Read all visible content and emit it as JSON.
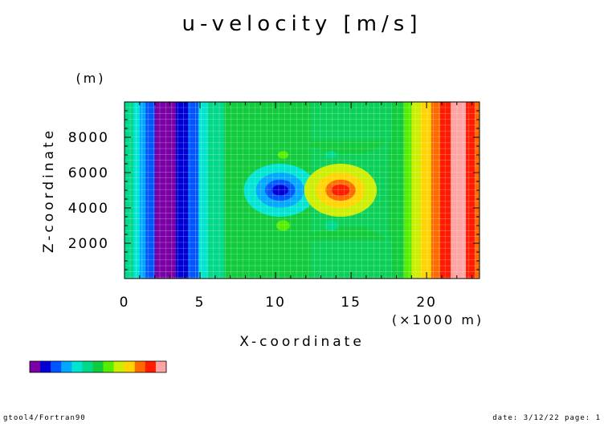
{
  "chart_data": {
    "type": "heatmap",
    "title": "u-velocity [m/s]",
    "xlabel": "X-coordinate",
    "xunit": "(×1000 m)",
    "ylabel": "Z-coordinate",
    "yunit": "(m)",
    "xlim": [
      0,
      23.5
    ],
    "ylim": [
      0,
      10000
    ],
    "x_ticks": [
      0,
      5,
      10,
      15,
      20
    ],
    "y_ticks": [
      2000,
      4000,
      6000,
      8000
    ],
    "colorbar": {
      "colors": [
        "#7a00a6",
        "#0000d6",
        "#0055ff",
        "#00a8ff",
        "#00e5d2",
        "#00d88a",
        "#10cc3c",
        "#55ee00",
        "#ccee00",
        "#ffd400",
        "#ff6a00",
        "#ff1a00",
        "#ffa3a3"
      ]
    },
    "field": {
      "vertical_bands": [
        {
          "x0": 0.0,
          "x1": 0.6,
          "level": 5
        },
        {
          "x0": 0.6,
          "x1": 1.0,
          "level": 4
        },
        {
          "x0": 1.0,
          "x1": 1.4,
          "level": 3
        },
        {
          "x0": 1.4,
          "x1": 2.0,
          "level": 2
        },
        {
          "x0": 2.0,
          "x1": 3.4,
          "level": 0
        },
        {
          "x0": 3.4,
          "x1": 4.2,
          "level": 1
        },
        {
          "x0": 4.2,
          "x1": 4.9,
          "level": 2
        },
        {
          "x0": 4.9,
          "x1": 5.5,
          "level": 4
        },
        {
          "x0": 5.5,
          "x1": 6.6,
          "level": 5
        },
        {
          "x0": 6.6,
          "x1": 18.5,
          "level": 6
        },
        {
          "x0": 18.5,
          "x1": 19.0,
          "level": 7
        },
        {
          "x0": 19.0,
          "x1": 19.6,
          "level": 8
        },
        {
          "x0": 19.6,
          "x1": 20.3,
          "level": 9
        },
        {
          "x0": 20.3,
          "x1": 20.9,
          "level": 10
        },
        {
          "x0": 20.9,
          "x1": 21.6,
          "level": 11
        },
        {
          "x0": 21.6,
          "x1": 22.6,
          "level": 12
        },
        {
          "x0": 22.6,
          "x1": 23.2,
          "level": 11
        },
        {
          "x0": 23.2,
          "x1": 23.5,
          "level": 10
        }
      ],
      "lighter_region": {
        "x0": 12.3,
        "x1": 17.7,
        "level": 5
      },
      "vortices": [
        {
          "x": 10.3,
          "z": 5000,
          "rings": [
            {
              "rx": 2.4,
              "rz": 1500,
              "level": 4
            },
            {
              "rx": 1.6,
              "rz": 1000,
              "level": 3
            },
            {
              "rx": 1.0,
              "rz": 600,
              "level": 2
            },
            {
              "rx": 0.55,
              "rz": 300,
              "level": 1
            }
          ]
        },
        {
          "x": 14.3,
          "z": 5000,
          "rings": [
            {
              "rx": 2.4,
              "rz": 1500,
              "level": 8
            },
            {
              "rx": 1.6,
              "rz": 1000,
              "level": 9
            },
            {
              "rx": 1.0,
              "rz": 600,
              "level": 10
            },
            {
              "rx": 0.6,
              "rz": 320,
              "level": 11
            }
          ]
        }
      ],
      "spots": [
        {
          "x": 10.5,
          "z": 7000,
          "rx": 0.35,
          "rz": 220,
          "level": 7
        },
        {
          "x": 13.7,
          "z": 7000,
          "rx": 0.35,
          "rz": 220,
          "level": 5
        },
        {
          "x": 10.5,
          "z": 3000,
          "rx": 0.45,
          "rz": 300,
          "level": 7
        },
        {
          "x": 13.7,
          "z": 3000,
          "rx": 0.45,
          "rz": 300,
          "level": 5
        }
      ]
    }
  },
  "footer": {
    "left": "gtool4/Fortran90",
    "right": "date: 3/12/22 page: 1"
  }
}
